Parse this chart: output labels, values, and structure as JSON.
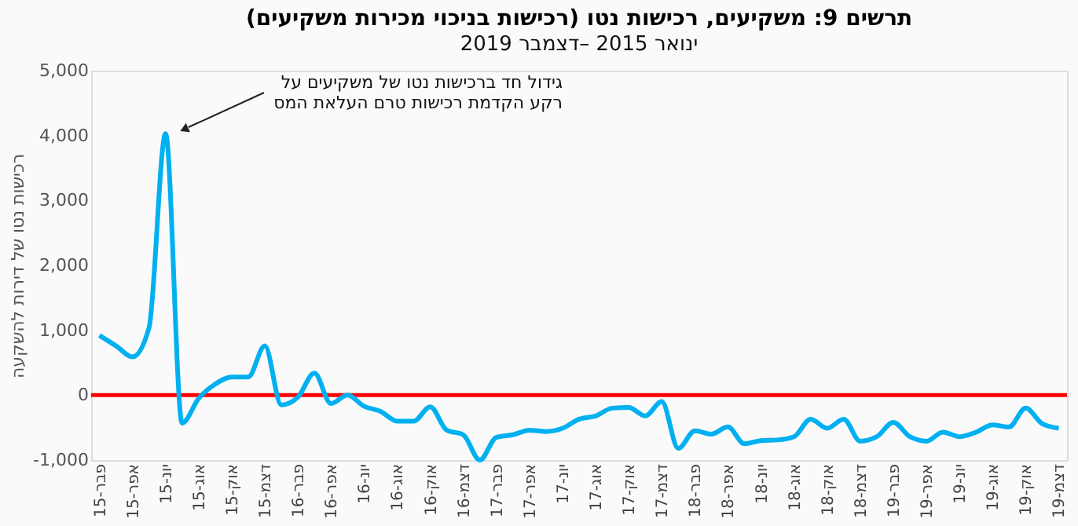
{
  "chart_data": {
    "type": "line",
    "title": "תרשים 9: משקיעים, רכישות נטו (רכישות בניכוי מכירות משקיעים)",
    "subtitle": "ינואר 2015 –דצמבר 2019",
    "ylabel": "רכישות נטו של דירות להשקעה",
    "categories": [
      "פבר-15",
      null,
      "אפר-15",
      null,
      "יונ-15",
      null,
      "אוג-15",
      null,
      "אוק-15",
      null,
      "דצמ-15",
      null,
      "פבר-16",
      null,
      "אפר-16",
      null,
      "יונ-16",
      null,
      "אוג-16",
      null,
      "אוק-16",
      null,
      "דצמ-16",
      null,
      "פבר-17",
      null,
      "אפר-17",
      null,
      "יונ-17",
      null,
      "אוג-17",
      null,
      "אוק-17",
      null,
      "דצמ-17",
      null,
      "פבר-18",
      null,
      "אפר-18",
      null,
      "יונ-18",
      null,
      "אוג-18",
      null,
      "אוק-18",
      null,
      "דצמ-18",
      null,
      "פבר-19",
      null,
      "אפר-19",
      null,
      "יונ-19",
      null,
      "אוג-19",
      null,
      "אוק-19",
      null,
      "דצמ-19"
    ],
    "series": [
      {
        "color": "#00b0f0",
        "values": [
          920,
          760,
          590,
          1040,
          4030,
          -430,
          -50,
          170,
          280,
          280,
          760,
          -150,
          -30,
          340,
          -130,
          0,
          -170,
          -250,
          -400,
          -400,
          -180,
          -540,
          -610,
          -1000,
          -650,
          -610,
          -540,
          -560,
          -510,
          -370,
          -320,
          -200,
          -190,
          -320,
          -100,
          -820,
          -550,
          -600,
          -490,
          -750,
          -700,
          -690,
          -640,
          -370,
          -510,
          -370,
          -710,
          -640,
          -420,
          -640,
          -710,
          -570,
          -640,
          -570,
          -460,
          -490,
          -200,
          -440,
          -510
        ]
      }
    ],
    "ylim": [
      -1000,
      5000
    ],
    "yticks": [
      {
        "value": -1000,
        "label": "-1,000"
      },
      0,
      {
        "value": 1000,
        "label": "1,000"
      },
      {
        "value": 2000,
        "label": "2,000"
      },
      {
        "value": 3000,
        "label": "3,000"
      },
      {
        "value": 4000,
        "label": "4,000"
      },
      {
        "value": 5000,
        "label": "5,000"
      }
    ],
    "grid": false,
    "marker": "none",
    "line_style": "solid",
    "ref_lines": [
      {
        "axis": "y",
        "value": 0,
        "color": "#ff0000"
      }
    ],
    "annotations": [
      "גידול חד ברכישות נטו של משקיעים על\nרקע הקדמת רכישות טרם העלאת המס"
    ]
  }
}
